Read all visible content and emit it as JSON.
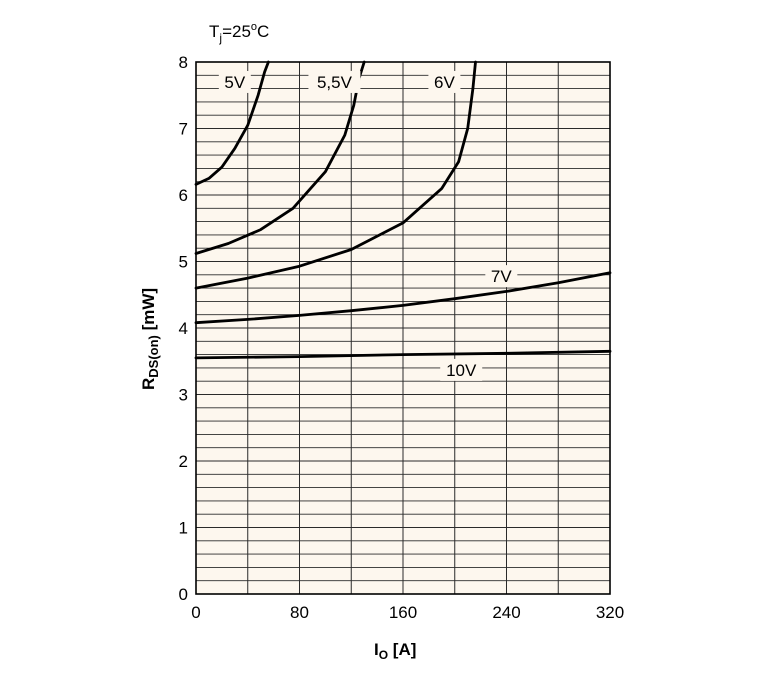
{
  "chart_data": {
    "type": "line",
    "annotation": {
      "main": "T",
      "sub": "j",
      "rest": "=25",
      "sup": "o",
      "tail": "C"
    },
    "xlabel": {
      "main": "I",
      "sub": "O",
      "rest": " [A]"
    },
    "ylabel": {
      "main": "R",
      "sub": "DS(on)",
      "rest": " [mW]"
    },
    "xlim": [
      0,
      320
    ],
    "ylim": [
      0,
      8
    ],
    "x_ticks": [
      0,
      80,
      160,
      240,
      320
    ],
    "y_ticks": [
      0,
      1,
      2,
      3,
      4,
      5,
      6,
      7,
      8
    ],
    "minor_grid": {
      "x_step": 40,
      "y_step": 0.2
    },
    "plot_background": "#fdf7ee",
    "grid_color": "#2a2a2a",
    "line_color": "#000000",
    "series": [
      {
        "name": "5V",
        "x": [
          0,
          10,
          20,
          30,
          40,
          48,
          53,
          56
        ],
        "y": [
          6.16,
          6.25,
          6.42,
          6.7,
          7.05,
          7.5,
          7.85,
          8.0
        ]
      },
      {
        "name": "5,5V",
        "x": [
          0,
          25,
          50,
          75,
          100,
          115,
          122,
          126,
          130
        ],
        "y": [
          5.12,
          5.27,
          5.48,
          5.8,
          6.35,
          6.9,
          7.35,
          7.75,
          8.0
        ]
      },
      {
        "name": "6V",
        "x": [
          0,
          40,
          80,
          120,
          160,
          190,
          203,
          210,
          214,
          216
        ],
        "y": [
          4.6,
          4.75,
          4.93,
          5.18,
          5.58,
          6.1,
          6.5,
          7.0,
          7.6,
          8.0
        ]
      },
      {
        "name": "7V",
        "x": [
          0,
          40,
          80,
          120,
          160,
          200,
          240,
          280,
          320
        ],
        "y": [
          4.08,
          4.13,
          4.19,
          4.26,
          4.34,
          4.44,
          4.55,
          4.68,
          4.83
        ]
      },
      {
        "name": "10V",
        "x": [
          0,
          80,
          160,
          240,
          320
        ],
        "y": [
          3.55,
          3.57,
          3.6,
          3.62,
          3.65
        ]
      }
    ],
    "curve_labels": [
      {
        "text": "5V",
        "x": 30,
        "y": 7.7
      },
      {
        "text": "5,5V",
        "x": 107,
        "y": 7.7
      },
      {
        "text": "6V",
        "x": 192,
        "y": 7.7
      },
      {
        "text": "7V",
        "x": 236,
        "y": 4.78
      },
      {
        "text": "10V",
        "x": 205,
        "y": 3.37
      }
    ]
  }
}
